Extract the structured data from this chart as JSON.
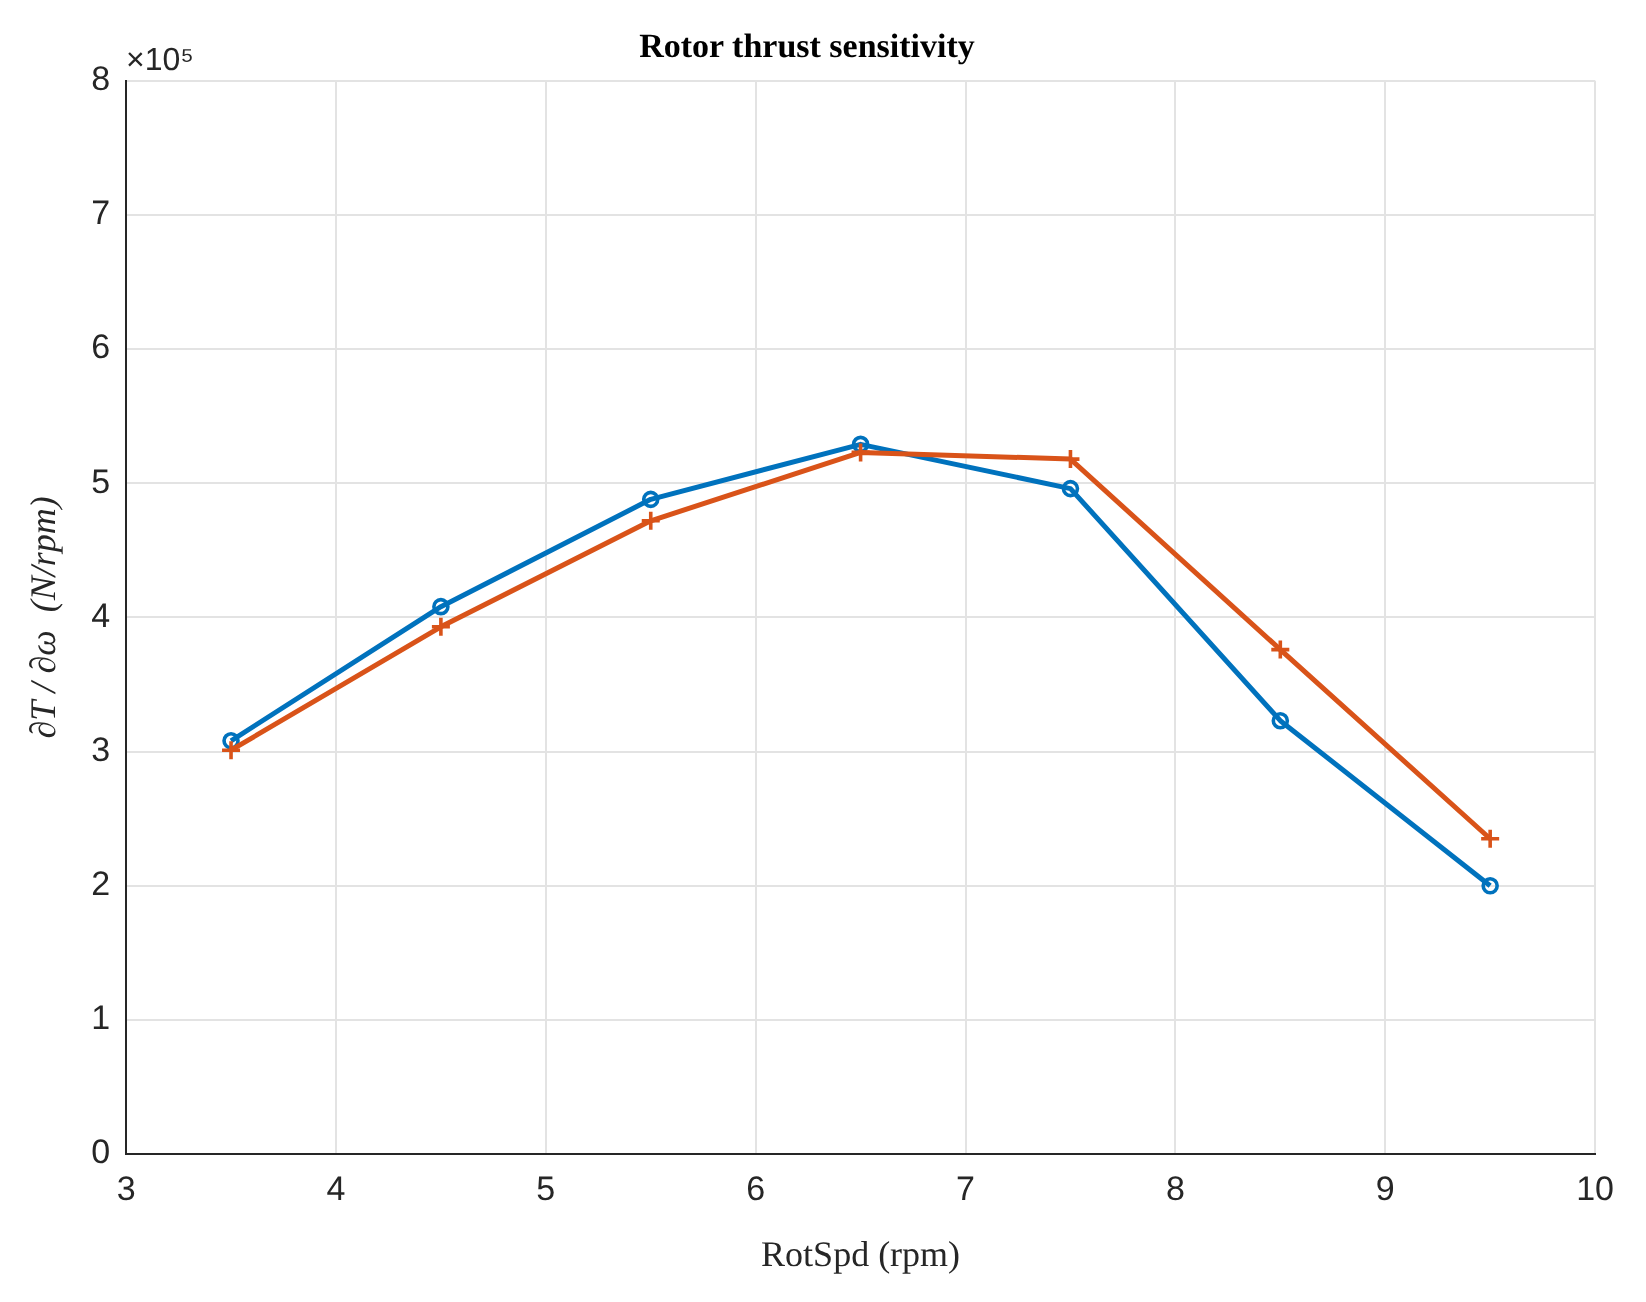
{
  "chart_data": {
    "type": "line",
    "title": "Rotor thrust sensitivity",
    "xlabel": "RotSpd (rpm)",
    "ylabel": "∂T / ∂ω  (N/rpm)",
    "annotations": [
      "×10⁵"
    ],
    "x": [
      3.5,
      4.5,
      5.5,
      6.5,
      7.5,
      8.5,
      9.5
    ],
    "series": [
      {
        "color": "#0072bd",
        "marker": "circle",
        "values": [
          3.08,
          4.08,
          4.88,
          5.29,
          4.96,
          3.23,
          2.0
        ]
      },
      {
        "color": "#d95319",
        "marker": "cross",
        "values": [
          3.01,
          3.93,
          4.72,
          5.23,
          5.18,
          3.76,
          2.35
        ]
      }
    ],
    "xlim": [
      3,
      10
    ],
    "xticks": [
      3,
      4,
      5,
      6,
      7,
      8,
      9,
      10
    ],
    "ylim": [
      0,
      8
    ],
    "yticks": [
      0,
      1,
      2,
      3,
      4,
      5,
      6,
      7,
      8
    ],
    "grid": true,
    "line_style": "solid"
  }
}
